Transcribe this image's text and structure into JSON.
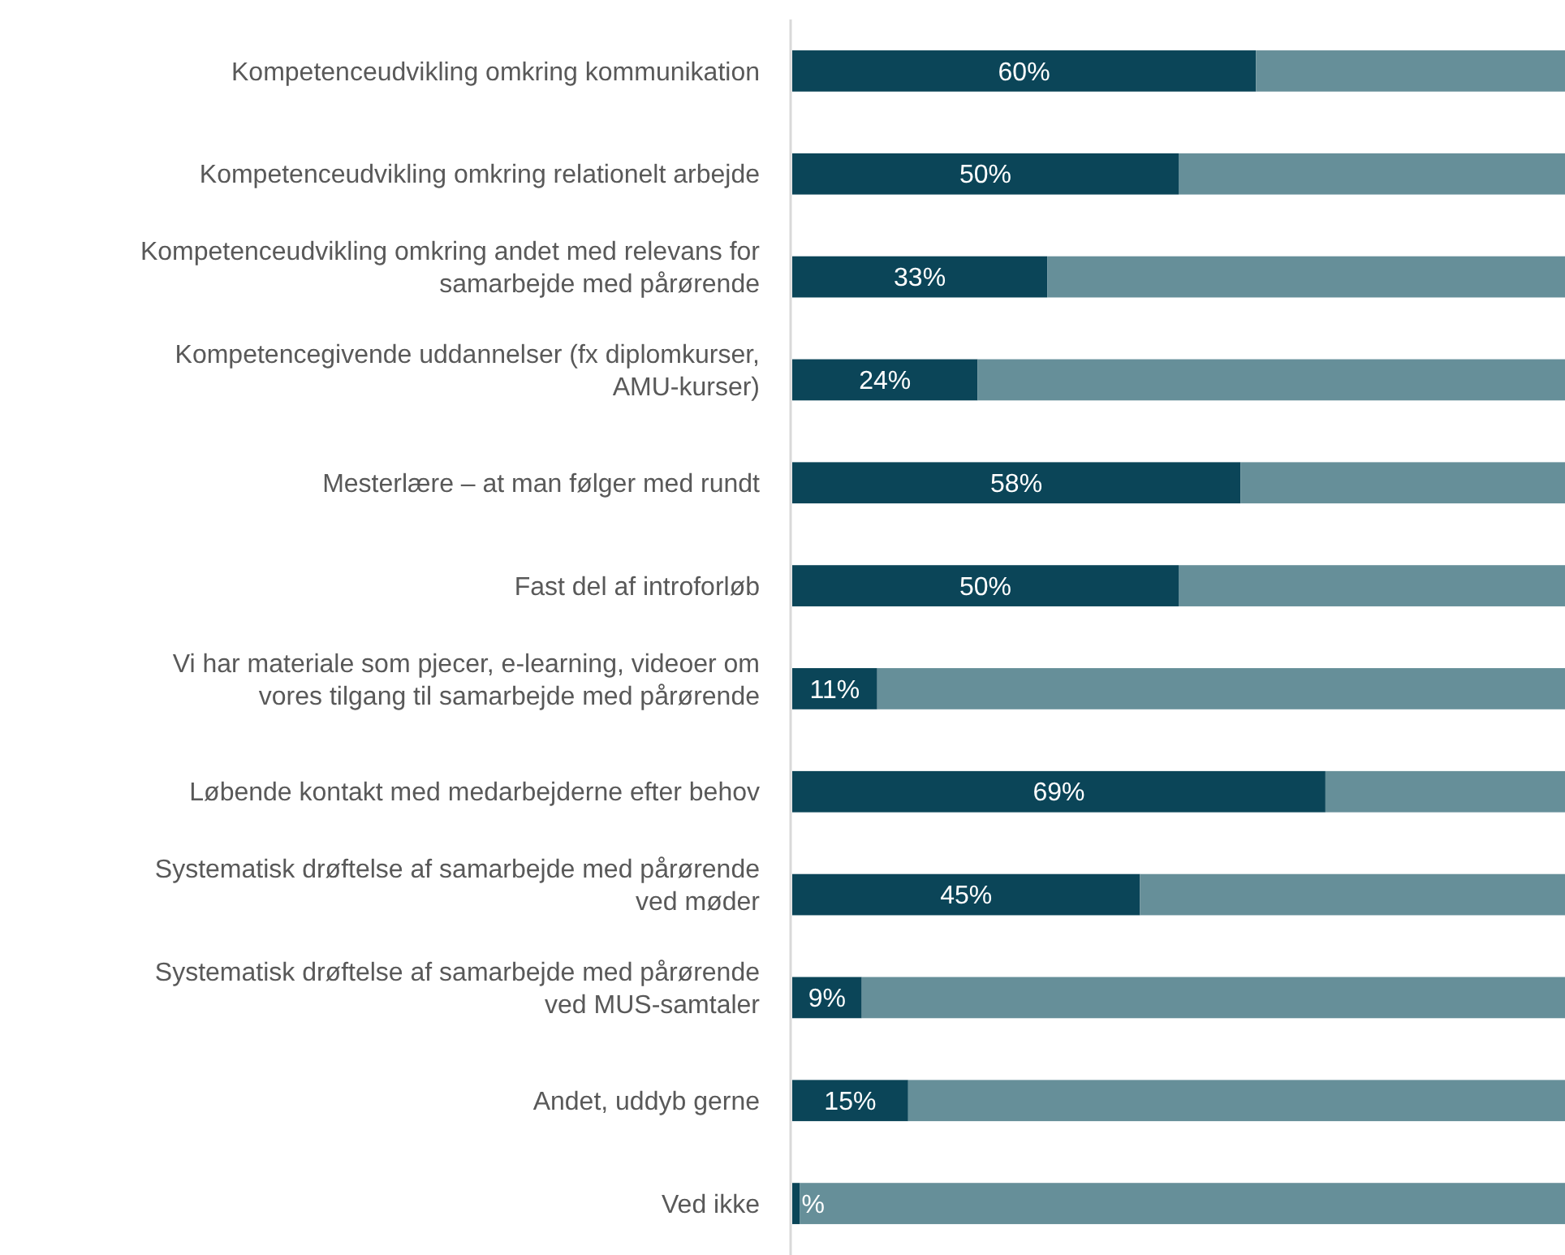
{
  "chart_data": {
    "type": "bar",
    "orientation": "horizontal",
    "stacked": true,
    "xlim": [
      0,
      100
    ],
    "tick_labels": "y",
    "categories": [
      "Kompetenceudvikling omkring kommunikation",
      "Kompetenceudvikling omkring relationelt arbejde",
      "Kompetenceudvikling omkring andet med relevans for samarbejde med pårørende",
      "Kompetencegivende uddannelser (fx diplomkurser, AMU-kurser)",
      "Mesterlære – at man følger med rundt",
      "Fast del af introforløb",
      "Vi har materiale som pjecer, e-learning, videoer om vores tilgang til samarbejde med pårørende",
      "Løbende kontakt med medarbejderne efter behov",
      "Systematisk drøftelse af samarbejde med pårørende ved møder",
      "Systematisk drøftelse af samarbejde med pårørende ved MUS-samtaler",
      "Andet, uddyb gerne",
      "Ved ikke"
    ],
    "series": [
      {
        "color": "#0b4558",
        "values": [
          60,
          50,
          33,
          24,
          58,
          50,
          11,
          69,
          45,
          9,
          15,
          1
        ],
        "value_labels": [
          "60%",
          "50%",
          "33%",
          "24%",
          "58%",
          "50%",
          "11%",
          "69%",
          "45%",
          "9%",
          "15%",
          "%"
        ]
      },
      {
        "color": "#668f99",
        "values": [
          40,
          50,
          67,
          76,
          42,
          50,
          89,
          31,
          55,
          91,
          85,
          99
        ]
      }
    ]
  }
}
